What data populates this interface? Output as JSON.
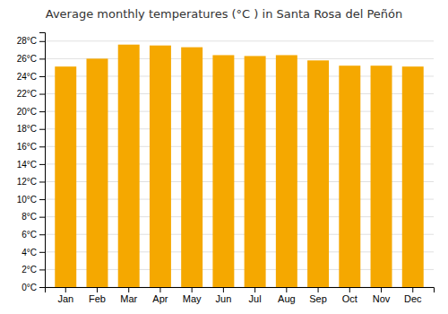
{
  "chart_data": {
    "type": "bar",
    "title": "Average monthly temperatures (°C ) in Santa Rosa del Peñón",
    "categories": [
      "Jan",
      "Feb",
      "Mar",
      "Apr",
      "May",
      "Jun",
      "Jul",
      "Aug",
      "Sep",
      "Oct",
      "Nov",
      "Dec"
    ],
    "values": [
      25.1,
      26.0,
      27.6,
      27.5,
      27.3,
      26.4,
      26.3,
      26.4,
      25.8,
      25.2,
      25.2,
      25.1
    ],
    "color": "#F5A800",
    "ylim": [
      0,
      29
    ],
    "yticks": [
      {
        "value": 0,
        "label": "0°C"
      },
      {
        "value": 2,
        "label": "2°C"
      },
      {
        "value": 4,
        "label": "4°C"
      },
      {
        "value": 6,
        "label": "6°C"
      },
      {
        "value": 8,
        "label": "8°C"
      },
      {
        "value": 10,
        "label": "10°C"
      },
      {
        "value": 12,
        "label": "12°C"
      },
      {
        "value": 14,
        "label": "14°C"
      },
      {
        "value": 16,
        "label": "16°C"
      },
      {
        "value": 18,
        "label": "18°C"
      },
      {
        "value": 20,
        "label": "20°C"
      },
      {
        "value": 22,
        "label": "22°C"
      },
      {
        "value": 24,
        "label": "24°C"
      },
      {
        "value": 26,
        "label": "26°C"
      },
      {
        "value": 28,
        "label": "28°C"
      }
    ],
    "grid": true
  }
}
